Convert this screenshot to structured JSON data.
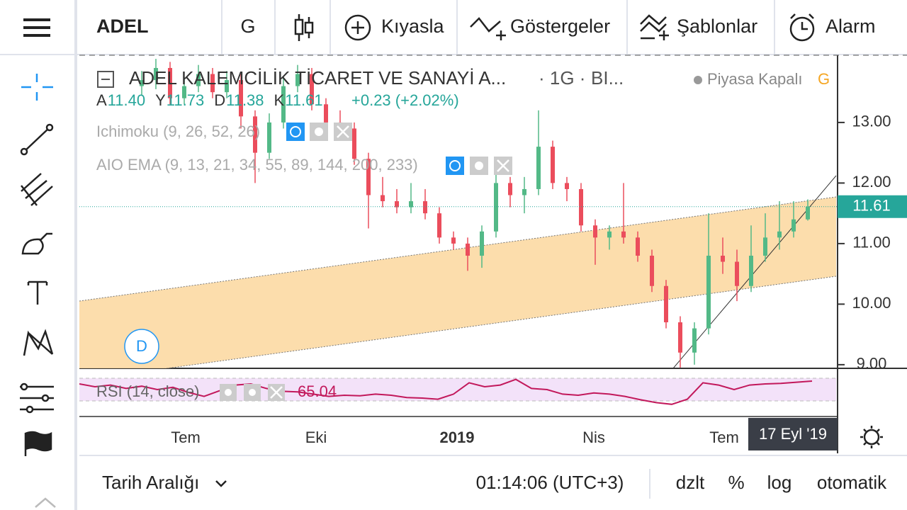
{
  "toolbar": {
    "symbol": "ADEL",
    "interval": "G",
    "compare": "Kıyasla",
    "indicators": "Göstergeler",
    "templates": "Şablonlar",
    "alarm": "Alarm"
  },
  "legend": {
    "title": "ADEL KALEMCİLİK TİCARET VE SANAYİ A...",
    "interval": "· 1G ·",
    "exchange": "BI...",
    "status": "Piyasa Kapalı",
    "status_flag": "G",
    "ohlc": [
      {
        "key": "A",
        "text": "11.40"
      },
      {
        "key": "Y",
        "text": "11.73"
      },
      {
        "key": "D",
        "text": "11.38"
      },
      {
        "key": "K",
        "text": "11.61"
      }
    ],
    "change": "+0.23 (+2.02%)",
    "studies": [
      "Ichimoku (9, 26, 52, 26)",
      "AIO EMA (9, 13, 21, 34, 55, 89, 144, 200, 233)"
    ]
  },
  "marker": "D",
  "chart_data": {
    "type": "candlestick",
    "up_color": "#53b987",
    "down_color": "#eb4d5c",
    "ylim": [
      8.94,
      14.11
    ],
    "yticks": [
      {
        "value": 9,
        "label": "9.00"
      },
      {
        "value": 10,
        "label": "10.00"
      },
      {
        "value": 11,
        "label": "11.00"
      },
      {
        "value": 12,
        "label": "12.00"
      },
      {
        "value": 13,
        "label": "13.00"
      }
    ],
    "last_price": 11.61,
    "last_color": "#26a69a",
    "candles": [
      [
        13.6,
        13.85,
        13.45,
        13.7
      ],
      [
        13.7,
        14.05,
        13.55,
        13.9
      ],
      [
        13.9,
        14.0,
        13.3,
        13.4
      ],
      [
        13.4,
        13.75,
        13.3,
        13.6
      ],
      [
        13.6,
        13.95,
        13.5,
        13.8
      ],
      [
        13.8,
        13.9,
        13.4,
        13.5
      ],
      [
        13.5,
        13.85,
        13.4,
        13.7
      ],
      [
        13.7,
        13.8,
        12.9,
        13.1
      ],
      [
        13.1,
        13.2,
        12.0,
        12.5
      ],
      [
        12.5,
        13.15,
        12.4,
        13.0
      ],
      [
        13.0,
        13.75,
        12.9,
        13.6
      ],
      [
        13.6,
        13.95,
        13.5,
        13.8
      ],
      [
        13.8,
        13.9,
        13.2,
        13.3
      ],
      [
        13.3,
        13.4,
        12.8,
        13.0
      ],
      [
        13.0,
        13.2,
        12.8,
        12.9
      ],
      [
        12.9,
        13.0,
        12.3,
        12.4
      ],
      [
        12.4,
        12.5,
        11.25,
        11.8
      ],
      [
        11.8,
        12.1,
        11.6,
        11.7
      ],
      [
        11.7,
        11.9,
        11.5,
        11.6
      ],
      [
        11.6,
        12.0,
        11.5,
        11.7
      ],
      [
        11.7,
        11.9,
        11.4,
        11.5
      ],
      [
        11.5,
        11.6,
        11.0,
        11.1
      ],
      [
        11.1,
        11.2,
        10.9,
        11.0
      ],
      [
        11.0,
        11.1,
        10.55,
        10.8
      ],
      [
        10.8,
        11.3,
        10.6,
        11.2
      ],
      [
        11.2,
        12.2,
        11.1,
        12.0
      ],
      [
        12.0,
        12.1,
        11.6,
        11.8
      ],
      [
        11.8,
        12.1,
        11.5,
        11.9
      ],
      [
        11.9,
        13.2,
        11.8,
        12.6
      ],
      [
        12.6,
        12.7,
        11.9,
        12.0
      ],
      [
        12.0,
        12.1,
        11.7,
        11.9
      ],
      [
        11.9,
        12.0,
        11.2,
        11.3
      ],
      [
        11.3,
        11.4,
        10.65,
        11.1
      ],
      [
        11.1,
        11.3,
        10.9,
        11.2
      ],
      [
        11.2,
        12.0,
        11.0,
        11.1
      ],
      [
        11.1,
        11.2,
        10.7,
        10.8
      ],
      [
        10.8,
        10.9,
        10.2,
        10.3
      ],
      [
        10.3,
        10.4,
        9.6,
        9.7
      ],
      [
        9.7,
        9.8,
        8.95,
        9.2
      ],
      [
        9.2,
        9.7,
        9.0,
        9.6
      ],
      [
        9.6,
        11.5,
        9.5,
        10.8
      ],
      [
        10.8,
        11.1,
        10.5,
        10.7
      ],
      [
        10.7,
        10.9,
        10.05,
        10.3
      ],
      [
        10.3,
        11.3,
        10.2,
        10.8
      ],
      [
        10.8,
        11.5,
        10.7,
        11.1
      ],
      [
        11.1,
        11.7,
        10.9,
        11.2
      ],
      [
        11.2,
        11.7,
        11.1,
        11.4
      ],
      [
        11.4,
        11.73,
        11.38,
        11.61
      ]
    ],
    "x_labels": [
      "Tem",
      "Eki",
      "2019",
      "Nis",
      "Tem"
    ],
    "crosshair_date": "17 Eyl '19",
    "rsi": {
      "name": "RSI (14, close)",
      "color": "#c2185b",
      "ylim": [
        0,
        100
      ],
      "bands": [
        30,
        70
      ],
      "values": [
        60,
        55,
        58,
        52,
        56,
        50,
        54,
        45,
        38,
        48,
        58,
        60,
        52,
        47,
        46,
        42,
        38,
        40,
        39,
        42,
        40,
        36,
        35,
        33,
        42,
        62,
        55,
        58,
        68,
        52,
        50,
        42,
        40,
        44,
        42,
        38,
        32,
        27,
        24,
        33,
        62,
        58,
        50,
        58,
        60,
        61,
        63,
        65.04
      ]
    }
  },
  "bottom": {
    "range": "Tarih Aralığı",
    "time": "01:14:06 (UTC+3)",
    "adjust": "dzlt",
    "percent": "%",
    "log": "log",
    "auto": "otomatik"
  }
}
